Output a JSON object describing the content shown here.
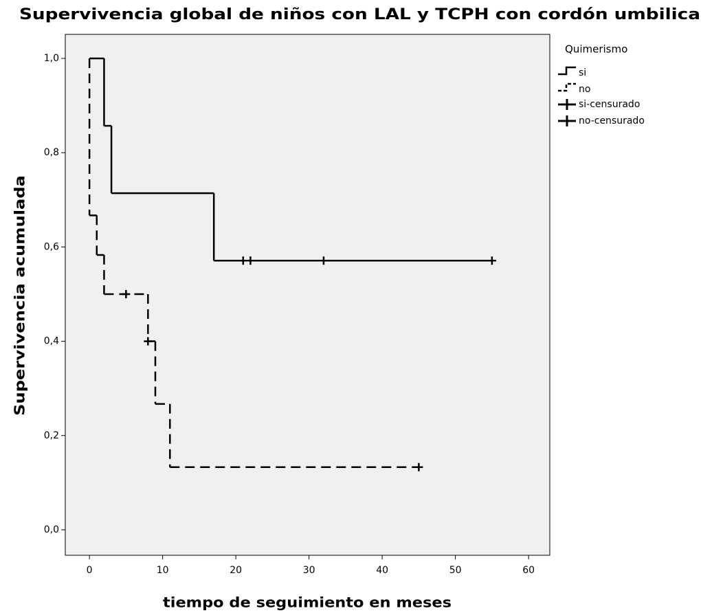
{
  "chart_data": {
    "type": "step",
    "title": "Supervivencia global de niños con LAL y TCPH con cordón umbilical",
    "x_label": "tiempo de seguimiento en meses",
    "y_label": "Supervivencia acumulada",
    "legend_title": "Quimerismo",
    "legend": "right",
    "xlim": [
      -3.3,
      62.9
    ],
    "ylim": [
      -0.054,
      1.051
    ],
    "xticks": [
      0,
      10,
      20,
      30,
      40,
      50,
      60
    ],
    "yticks": [
      {
        "value": 0,
        "label": "0,0"
      },
      {
        "value": 0.2,
        "label": "0,2"
      },
      {
        "value": 0.4,
        "label": "0,4"
      },
      {
        "value": 0.6,
        "label": "0,6"
      },
      {
        "value": 0.8,
        "label": "0,8"
      },
      {
        "value": 1.0,
        "label": "1,0"
      }
    ],
    "series": [
      {
        "name": "si",
        "color": "#000000",
        "dashed": false,
        "x": [
          0,
          2,
          3,
          17,
          55
        ],
        "values": [
          1.0,
          0.857,
          0.714,
          0.571,
          0.571
        ],
        "censored": {
          "name": "si-censurado",
          "x": [
            21,
            22,
            32,
            55
          ],
          "values": [
            0.571,
            0.571,
            0.571,
            0.571
          ]
        }
      },
      {
        "name": "no",
        "color": "#000000",
        "dashed": true,
        "x": [
          0,
          0,
          1,
          2,
          8,
          9,
          11,
          45
        ],
        "values": [
          1.0,
          0.667,
          0.583,
          0.5,
          0.4,
          0.267,
          0.133,
          0.133
        ],
        "censored": {
          "name": "no-censurado",
          "x": [
            5,
            8,
            45
          ],
          "values": [
            0.5,
            0.4,
            0.133
          ]
        }
      }
    ]
  }
}
